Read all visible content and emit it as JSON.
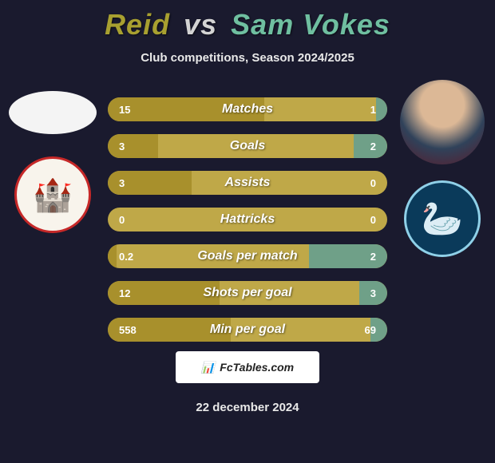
{
  "header": {
    "player1": "Reid",
    "vs": "vs",
    "player2": "Sam Vokes",
    "subtitle": "Club competitions, Season 2024/2025",
    "player1_color": "#a8a030",
    "player2_color": "#6fbfa0"
  },
  "colors": {
    "bar_left": "#a8902c",
    "bar_right": "#6fa088",
    "bar_rest": "#bfa848",
    "background": "#1a1a2e"
  },
  "stats": [
    {
      "label": "Matches",
      "left_val": "15",
      "right_val": "1",
      "left_pct": 56,
      "right_pct": 4
    },
    {
      "label": "Goals",
      "left_val": "3",
      "right_val": "2",
      "left_pct": 18,
      "right_pct": 12
    },
    {
      "label": "Assists",
      "left_val": "3",
      "right_val": "0",
      "left_pct": 30,
      "right_pct": 0
    },
    {
      "label": "Hattricks",
      "left_val": "0",
      "right_val": "0",
      "left_pct": 0,
      "right_pct": 0
    },
    {
      "label": "Goals per match",
      "left_val": "0.2",
      "right_val": "2",
      "left_pct": 3,
      "right_pct": 28
    },
    {
      "label": "Shots per goal",
      "left_val": "12",
      "right_val": "3",
      "left_pct": 40,
      "right_pct": 10
    },
    {
      "label": "Min per goal",
      "left_val": "558",
      "right_val": "69",
      "left_pct": 44,
      "right_pct": 6
    }
  ],
  "branding": {
    "site": "FcTables.com",
    "icon": "📊"
  },
  "date": "22 december 2024",
  "avatars": {
    "player1": {
      "type": "blank"
    },
    "player2": {
      "type": "photo",
      "name": "Sam Vokes"
    }
  },
  "clubs": {
    "player1": {
      "name": "Stevenage",
      "bg": "#f8f4ec",
      "border": "#c62828",
      "glyph": "🏰"
    },
    "player2": {
      "name": "Wycombe Wanderers",
      "bg": "#0a3a5a",
      "border": "#8fd0e8",
      "glyph": "🦢"
    }
  }
}
